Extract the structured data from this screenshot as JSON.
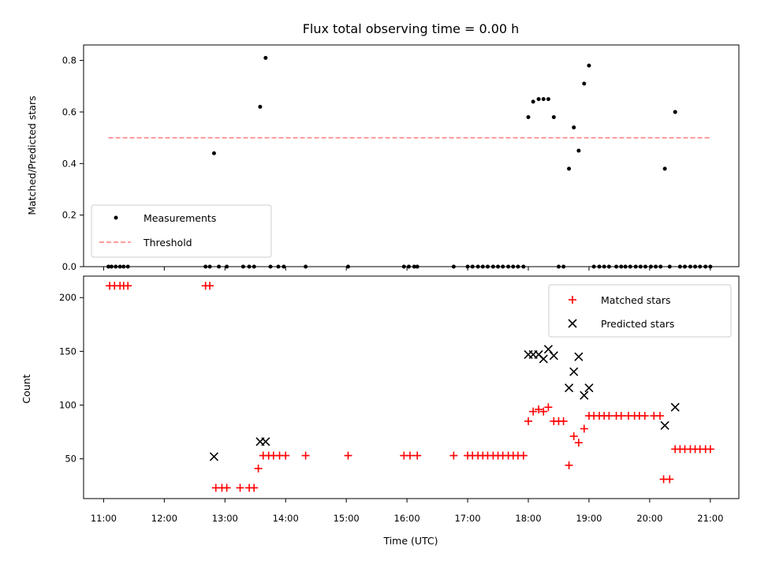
{
  "chart_data": [
    {
      "type": "scatter",
      "title": "Flux total observing time = 0.00 h",
      "xlabel": "",
      "ylabel": "Matched/Predicted stars",
      "ylim": [
        0,
        0.86
      ],
      "yticks": [
        0.0,
        0.2,
        0.4,
        0.6,
        0.8
      ],
      "ytick_labels": [
        "0.0",
        "0.2",
        "0.4",
        "0.6",
        "0.8"
      ],
      "xlim_hours": [
        10.67,
        21.47
      ],
      "xticks_hours": [
        11,
        12,
        13,
        14,
        15,
        16,
        17,
        18,
        19,
        20,
        21
      ],
      "legend_position": "lower-left",
      "series": [
        {
          "name": "Measurements",
          "marker": "dot",
          "color": "#000000",
          "points": [
            [
              11.08,
              0
            ],
            [
              11.13,
              0
            ],
            [
              11.2,
              0
            ],
            [
              11.27,
              0
            ],
            [
              11.33,
              0
            ],
            [
              11.4,
              0
            ],
            [
              12.68,
              0
            ],
            [
              12.75,
              0
            ],
            [
              12.82,
              0.44
            ],
            [
              12.9,
              0
            ],
            [
              13.03,
              0
            ],
            [
              13.3,
              0
            ],
            [
              13.4,
              0
            ],
            [
              13.48,
              0
            ],
            [
              13.58,
              0.62
            ],
            [
              13.67,
              0.81
            ],
            [
              13.75,
              0
            ],
            [
              13.88,
              0
            ],
            [
              13.97,
              0
            ],
            [
              14.33,
              0
            ],
            [
              15.03,
              0
            ],
            [
              15.95,
              0
            ],
            [
              16.03,
              0
            ],
            [
              16.12,
              0
            ],
            [
              16.17,
              0
            ],
            [
              16.77,
              0
            ],
            [
              17.0,
              0
            ],
            [
              17.08,
              0
            ],
            [
              17.17,
              0
            ],
            [
              17.25,
              0
            ],
            [
              17.33,
              0
            ],
            [
              17.42,
              0
            ],
            [
              17.5,
              0
            ],
            [
              17.58,
              0
            ],
            [
              17.67,
              0
            ],
            [
              17.75,
              0
            ],
            [
              17.83,
              0
            ],
            [
              17.92,
              0
            ],
            [
              18.0,
              0.58
            ],
            [
              18.08,
              0.64
            ],
            [
              18.17,
              0.65
            ],
            [
              18.25,
              0.65
            ],
            [
              18.33,
              0.65
            ],
            [
              18.42,
              0.58
            ],
            [
              18.5,
              0
            ],
            [
              18.58,
              0
            ],
            [
              18.67,
              0.38
            ],
            [
              18.75,
              0.54
            ],
            [
              18.83,
              0.45
            ],
            [
              18.92,
              0.71
            ],
            [
              19.0,
              0.78
            ],
            [
              19.08,
              0
            ],
            [
              19.17,
              0
            ],
            [
              19.25,
              0
            ],
            [
              19.33,
              0
            ],
            [
              19.45,
              0
            ],
            [
              19.53,
              0
            ],
            [
              19.6,
              0
            ],
            [
              19.68,
              0
            ],
            [
              19.77,
              0
            ],
            [
              19.85,
              0
            ],
            [
              19.93,
              0
            ],
            [
              20.02,
              0
            ],
            [
              20.1,
              0
            ],
            [
              20.18,
              0
            ],
            [
              20.25,
              0.38
            ],
            [
              20.33,
              0
            ],
            [
              20.42,
              0.6
            ],
            [
              20.5,
              0
            ],
            [
              20.58,
              0
            ],
            [
              20.67,
              0
            ],
            [
              20.75,
              0
            ],
            [
              20.83,
              0
            ],
            [
              20.92,
              0
            ],
            [
              21.0,
              0
            ]
          ]
        },
        {
          "name": "Threshold",
          "line_style": "dashed",
          "color": "#ff7b7b",
          "x": [
            11.08,
            21.0
          ],
          "y": [
            0.5,
            0.5
          ]
        }
      ]
    },
    {
      "type": "scatter",
      "title": "",
      "xlabel": "Time (UTC)",
      "ylabel": "Count",
      "ylim": [
        13,
        220
      ],
      "yticks": [
        50,
        100,
        150,
        200
      ],
      "ytick_labels": [
        "50",
        "100",
        "150",
        "200"
      ],
      "xlim_hours": [
        10.67,
        21.47
      ],
      "xticks_hours": [
        11,
        12,
        13,
        14,
        15,
        16,
        17,
        18,
        19,
        20,
        21
      ],
      "xtick_labels": [
        "11:00",
        "12:00",
        "13:00",
        "14:00",
        "15:00",
        "16:00",
        "17:00",
        "18:00",
        "19:00",
        "20:00",
        "21:00"
      ],
      "legend_position": "upper-right",
      "series": [
        {
          "name": "Matched stars",
          "marker": "plus",
          "color": "#ff0000",
          "points": [
            [
              11.1,
              211
            ],
            [
              11.18,
              211
            ],
            [
              11.27,
              211
            ],
            [
              11.33,
              211
            ],
            [
              11.4,
              211
            ],
            [
              12.68,
              211
            ],
            [
              12.75,
              211
            ],
            [
              12.85,
              23
            ],
            [
              12.95,
              23
            ],
            [
              13.03,
              23
            ],
            [
              13.25,
              23
            ],
            [
              13.4,
              23
            ],
            [
              13.48,
              23
            ],
            [
              13.55,
              41
            ],
            [
              13.63,
              53
            ],
            [
              13.72,
              53
            ],
            [
              13.8,
              53
            ],
            [
              13.9,
              53
            ],
            [
              14.0,
              53
            ],
            [
              14.33,
              53
            ],
            [
              15.03,
              53
            ],
            [
              15.95,
              53
            ],
            [
              16.05,
              53
            ],
            [
              16.17,
              53
            ],
            [
              16.77,
              53
            ],
            [
              17.0,
              53
            ],
            [
              17.08,
              53
            ],
            [
              17.17,
              53
            ],
            [
              17.25,
              53
            ],
            [
              17.33,
              53
            ],
            [
              17.42,
              53
            ],
            [
              17.5,
              53
            ],
            [
              17.58,
              53
            ],
            [
              17.67,
              53
            ],
            [
              17.75,
              53
            ],
            [
              17.83,
              53
            ],
            [
              17.92,
              53
            ],
            [
              18.0,
              85
            ],
            [
              18.08,
              94
            ],
            [
              18.17,
              96
            ],
            [
              18.25,
              94
            ],
            [
              18.33,
              98
            ],
            [
              18.42,
              85
            ],
            [
              18.5,
              85
            ],
            [
              18.58,
              85
            ],
            [
              18.67,
              44
            ],
            [
              18.75,
              71
            ],
            [
              18.83,
              65
            ],
            [
              18.92,
              78
            ],
            [
              19.0,
              90
            ],
            [
              19.08,
              90
            ],
            [
              19.17,
              90
            ],
            [
              19.25,
              90
            ],
            [
              19.33,
              90
            ],
            [
              19.45,
              90
            ],
            [
              19.53,
              90
            ],
            [
              19.65,
              90
            ],
            [
              19.75,
              90
            ],
            [
              19.83,
              90
            ],
            [
              19.92,
              90
            ],
            [
              20.07,
              90
            ],
            [
              20.17,
              90
            ],
            [
              20.23,
              31
            ],
            [
              20.33,
              31
            ],
            [
              20.42,
              59
            ],
            [
              20.5,
              59
            ],
            [
              20.58,
              59
            ],
            [
              20.67,
              59
            ],
            [
              20.75,
              59
            ],
            [
              20.83,
              59
            ],
            [
              20.92,
              59
            ],
            [
              21.0,
              59
            ]
          ]
        },
        {
          "name": "Predicted stars",
          "marker": "x",
          "color": "#000000",
          "points": [
            [
              12.82,
              52
            ],
            [
              13.58,
              66
            ],
            [
              13.67,
              66
            ],
            [
              18.0,
              147
            ],
            [
              18.08,
              147
            ],
            [
              18.17,
              147
            ],
            [
              18.25,
              143
            ],
            [
              18.33,
              152
            ],
            [
              18.42,
              146
            ],
            [
              18.67,
              116
            ],
            [
              18.75,
              131
            ],
            [
              18.83,
              145
            ],
            [
              18.92,
              109
            ],
            [
              19.0,
              116
            ],
            [
              20.25,
              81
            ],
            [
              20.42,
              98
            ]
          ]
        }
      ]
    }
  ]
}
